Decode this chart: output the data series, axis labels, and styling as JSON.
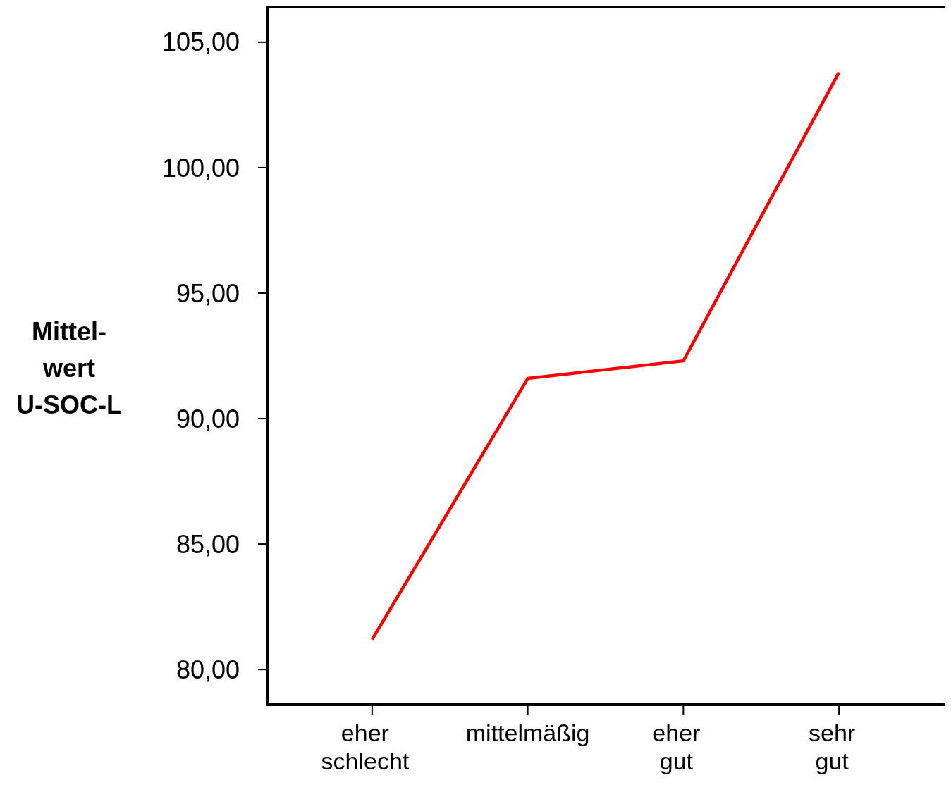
{
  "chart_data": {
    "type": "line",
    "ylabel": "Mittel- wert U-SOC-L",
    "categories": [
      "eher schlecht",
      "mittelmäßig",
      "eher gut",
      "sehr gut"
    ],
    "series": [
      {
        "color": "#ff0000",
        "values": [
          81.2,
          91.6,
          92.3,
          103.8
        ]
      }
    ],
    "ylim": [
      78.6,
      106.4
    ],
    "yticks": [
      {
        "value": 80,
        "label": "80,00"
      },
      {
        "value": 85,
        "label": "85,00"
      },
      {
        "value": 90,
        "label": "90,00"
      },
      {
        "value": 95,
        "label": "95,00"
      },
      {
        "value": 100,
        "label": "100,00"
      },
      {
        "value": 105,
        "label": "105,00"
      }
    ],
    "grid": false,
    "marker": "none",
    "line_style": "solid"
  }
}
